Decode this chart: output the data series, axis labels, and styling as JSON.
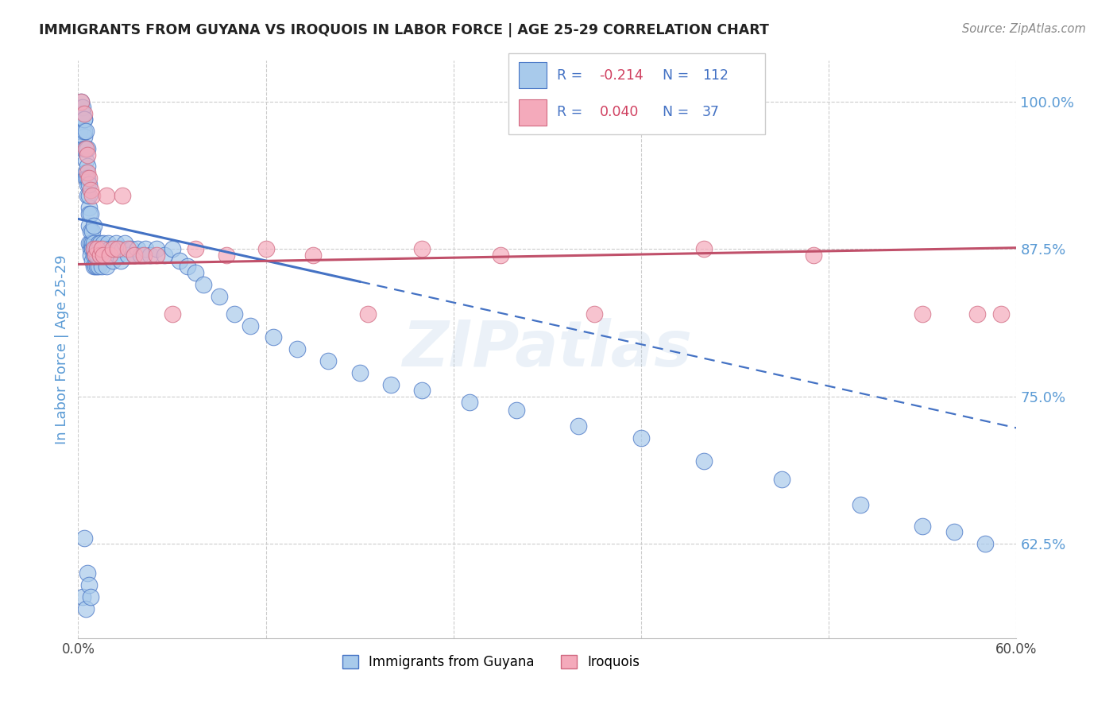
{
  "title": "IMMIGRANTS FROM GUYANA VS IROQUOIS IN LABOR FORCE | AGE 25-29 CORRELATION CHART",
  "source": "Source: ZipAtlas.com",
  "ylabel": "In Labor Force | Age 25-29",
  "legend_label1": "Immigrants from Guyana",
  "legend_label2": "Iroquois",
  "R1_val": "-0.214",
  "N1_val": "112",
  "R2_val": "0.040",
  "N2_val": "37",
  "xmin": 0.0,
  "xmax": 0.6,
  "ymin": 0.545,
  "ymax": 1.035,
  "yticks": [
    0.625,
    0.75,
    0.875,
    1.0
  ],
  "ytick_labels": [
    "62.5%",
    "75.0%",
    "87.5%",
    "100.0%"
  ],
  "color_guyana": "#A8CAEB",
  "color_iroquois": "#F4AABB",
  "color_line_guyana": "#4472C4",
  "color_line_iroquois": "#C0506A",
  "color_ylabel": "#5B9BD5",
  "color_ytick": "#5B9BD5",
  "watermark": "ZIPatlas",
  "guyana_x": [
    0.001,
    0.001,
    0.002,
    0.002,
    0.002,
    0.003,
    0.003,
    0.003,
    0.003,
    0.004,
    0.004,
    0.004,
    0.004,
    0.004,
    0.005,
    0.005,
    0.005,
    0.005,
    0.005,
    0.006,
    0.006,
    0.006,
    0.006,
    0.006,
    0.007,
    0.007,
    0.007,
    0.007,
    0.007,
    0.007,
    0.008,
    0.008,
    0.008,
    0.008,
    0.008,
    0.009,
    0.009,
    0.009,
    0.009,
    0.01,
    0.01,
    0.01,
    0.01,
    0.01,
    0.011,
    0.011,
    0.011,
    0.012,
    0.012,
    0.012,
    0.013,
    0.013,
    0.013,
    0.014,
    0.014,
    0.015,
    0.015,
    0.016,
    0.016,
    0.017,
    0.018,
    0.018,
    0.019,
    0.02,
    0.021,
    0.022,
    0.023,
    0.024,
    0.025,
    0.026,
    0.027,
    0.028,
    0.03,
    0.032,
    0.034,
    0.036,
    0.038,
    0.04,
    0.043,
    0.046,
    0.05,
    0.055,
    0.06,
    0.065,
    0.07,
    0.075,
    0.08,
    0.09,
    0.1,
    0.11,
    0.125,
    0.14,
    0.16,
    0.18,
    0.2,
    0.22,
    0.25,
    0.28,
    0.32,
    0.36,
    0.4,
    0.45,
    0.5,
    0.54,
    0.56,
    0.58,
    0.003,
    0.004,
    0.005,
    0.006,
    0.007,
    0.008
  ],
  "guyana_y": [
    0.975,
    0.99,
    0.985,
    0.995,
    1.0,
    0.99,
    0.975,
    0.96,
    0.995,
    0.985,
    0.97,
    0.96,
    0.975,
    0.985,
    0.95,
    0.94,
    0.96,
    0.975,
    0.935,
    0.93,
    0.945,
    0.92,
    0.935,
    0.96,
    0.91,
    0.92,
    0.93,
    0.88,
    0.895,
    0.905,
    0.875,
    0.89,
    0.905,
    0.87,
    0.88,
    0.88,
    0.865,
    0.875,
    0.89,
    0.87,
    0.875,
    0.86,
    0.88,
    0.895,
    0.87,
    0.86,
    0.875,
    0.875,
    0.86,
    0.87,
    0.88,
    0.875,
    0.86,
    0.87,
    0.88,
    0.875,
    0.86,
    0.87,
    0.88,
    0.875,
    0.87,
    0.86,
    0.88,
    0.875,
    0.87,
    0.865,
    0.875,
    0.88,
    0.87,
    0.875,
    0.865,
    0.875,
    0.88,
    0.87,
    0.875,
    0.87,
    0.875,
    0.87,
    0.875,
    0.87,
    0.875,
    0.87,
    0.875,
    0.865,
    0.86,
    0.855,
    0.845,
    0.835,
    0.82,
    0.81,
    0.8,
    0.79,
    0.78,
    0.77,
    0.76,
    0.755,
    0.745,
    0.738,
    0.725,
    0.715,
    0.695,
    0.68,
    0.658,
    0.64,
    0.635,
    0.625,
    0.58,
    0.63,
    0.57,
    0.6,
    0.59,
    0.58
  ],
  "iroquois_x": [
    0.002,
    0.004,
    0.005,
    0.006,
    0.006,
    0.007,
    0.008,
    0.009,
    0.01,
    0.011,
    0.012,
    0.014,
    0.015,
    0.016,
    0.018,
    0.02,
    0.022,
    0.025,
    0.028,
    0.032,
    0.036,
    0.042,
    0.05,
    0.06,
    0.075,
    0.095,
    0.12,
    0.15,
    0.185,
    0.22,
    0.27,
    0.33,
    0.4,
    0.47,
    0.54,
    0.575,
    0.59
  ],
  "iroquois_y": [
    1.0,
    0.99,
    0.96,
    0.94,
    0.955,
    0.935,
    0.925,
    0.92,
    0.875,
    0.87,
    0.875,
    0.87,
    0.875,
    0.87,
    0.92,
    0.87,
    0.875,
    0.875,
    0.92,
    0.875,
    0.87,
    0.87,
    0.87,
    0.82,
    0.875,
    0.87,
    0.875,
    0.87,
    0.82,
    0.875,
    0.87,
    0.82,
    0.875,
    0.87,
    0.82,
    0.82,
    0.82
  ],
  "guyana_line_x": [
    0.0,
    0.18,
    0.6
  ],
  "guyana_line_y": [
    0.893,
    0.858,
    0.72
  ],
  "iroquois_line_x": [
    0.0,
    0.6
  ],
  "iroquois_line_y": [
    0.862,
    0.876
  ],
  "dashed_split": 0.18
}
